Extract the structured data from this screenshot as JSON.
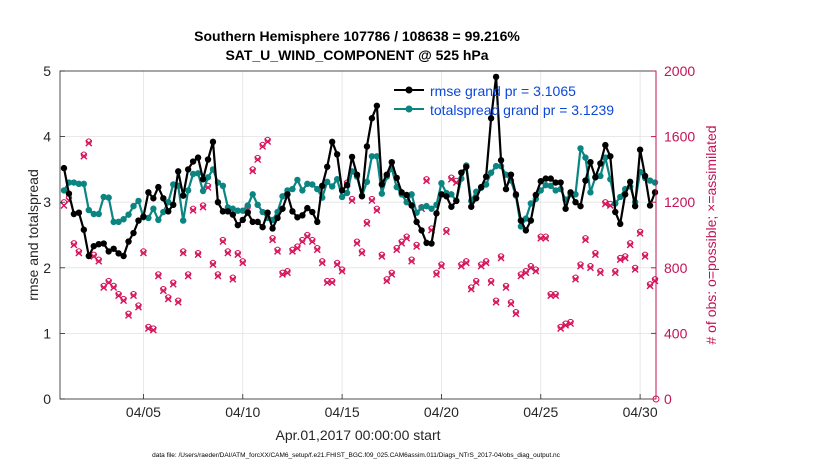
{
  "chart_data": {
    "type": "line",
    "title_line1": "Southern Hemisphere 107786 / 108638 = 99.216%",
    "title_line2": "SAT_U_WIND_COMPONENT @ 525 hPa",
    "xlabel": "Apr.01,2017 00:00:00 start",
    "ylabel_left": "rmse and totalspread",
    "ylabel_right": "# of obs: o=possible; ×=assimilated",
    "footer": "data file: /Users/raeder/DAI/ATM_forcXX/CAM6_setup/f.e21.FHIST_BGC.f09_025.CAM6assim.011/Diags_NTrS_2017-04/obs_diag_output.nc",
    "x_range": [
      0.8,
      30.8
    ],
    "xticks": [
      {
        "x": 5,
        "label": "04/05"
      },
      {
        "x": 10,
        "label": "04/10"
      },
      {
        "x": 15,
        "label": "04/15"
      },
      {
        "x": 20,
        "label": "04/20"
      },
      {
        "x": 25,
        "label": "04/25"
      },
      {
        "x": 30,
        "label": "04/30"
      }
    ],
    "y_left_range": [
      0,
      5
    ],
    "y_left_ticks": [
      "0",
      "1",
      "2",
      "3",
      "4",
      "5"
    ],
    "y_right_range": [
      0,
      2000
    ],
    "y_right_ticks": [
      "0",
      "400",
      "800",
      "1200",
      "1600",
      "2000"
    ],
    "legend": {
      "rmse_label": "rmse grand pr = 3.1065",
      "spread_label": "totalspread grand pr = 3.1239"
    },
    "colors": {
      "rmse": "#000000",
      "spread": "#0a8582",
      "obs": "#d6125a",
      "legend_text": "#0b47d9",
      "right_axis": "#c31356"
    },
    "x": [
      1.0,
      1.25,
      1.5,
      1.75,
      2.0,
      2.25,
      2.5,
      2.75,
      3.0,
      3.25,
      3.5,
      3.75,
      4.0,
      4.25,
      4.5,
      4.75,
      5.0,
      5.25,
      5.5,
      5.75,
      6.0,
      6.25,
      6.5,
      6.75,
      7.0,
      7.25,
      7.5,
      7.75,
      8.0,
      8.25,
      8.5,
      8.75,
      9.0,
      9.25,
      9.5,
      9.75,
      10.0,
      10.25,
      10.5,
      10.75,
      11.0,
      11.25,
      11.5,
      11.75,
      12.0,
      12.25,
      12.5,
      12.75,
      13.0,
      13.25,
      13.5,
      13.75,
      14.0,
      14.25,
      14.5,
      14.75,
      15.0,
      15.25,
      15.5,
      15.75,
      16.0,
      16.25,
      16.5,
      16.75,
      17.0,
      17.25,
      17.5,
      17.75,
      18.0,
      18.25,
      18.5,
      18.75,
      19.0,
      19.25,
      19.5,
      19.75,
      20.0,
      20.25,
      20.5,
      20.75,
      21.0,
      21.25,
      21.5,
      21.75,
      22.0,
      22.25,
      22.5,
      22.75,
      23.0,
      23.25,
      23.5,
      23.75,
      24.0,
      24.25,
      24.5,
      24.75,
      25.0,
      25.25,
      25.5,
      25.75,
      26.0,
      26.25,
      26.5,
      26.75,
      27.0,
      27.25,
      27.5,
      27.75,
      28.0,
      28.25,
      28.5,
      28.75,
      29.0,
      29.25,
      29.5,
      29.75,
      30.0,
      30.25,
      30.5,
      30.75
    ],
    "series": [
      {
        "name": "rmse",
        "values": [
          3.52,
          3.13,
          2.82,
          2.84,
          2.58,
          2.18,
          2.33,
          2.36,
          2.37,
          2.25,
          2.29,
          2.22,
          2.18,
          2.4,
          2.53,
          2.72,
          2.78,
          3.15,
          3.06,
          3.23,
          3.06,
          2.86,
          2.96,
          3.47,
          3.1,
          3.5,
          3.62,
          3.68,
          3.35,
          3.65,
          3.92,
          3.0,
          2.86,
          2.86,
          2.81,
          2.65,
          2.73,
          2.84,
          2.7,
          2.7,
          2.62,
          2.84,
          2.6,
          2.76,
          2.9,
          3.12,
          2.86,
          2.77,
          2.8,
          2.91,
          2.85,
          2.7,
          3.25,
          3.54,
          3.92,
          3.73,
          3.18,
          3.26,
          3.69,
          3.42,
          3.09,
          3.85,
          4.28,
          4.47,
          3.27,
          3.42,
          3.61,
          3.37,
          3.15,
          3.11,
          2.95,
          2.7,
          2.57,
          2.38,
          2.37,
          2.83,
          3.12,
          3.09,
          2.93,
          3.02,
          3.45,
          3.54,
          2.93,
          3.06,
          3.23,
          3.39,
          4.28,
          4.91,
          3.64,
          3.2,
          3.42,
          3.12,
          2.72,
          2.57,
          2.72,
          3.11,
          3.32,
          3.36,
          3.36,
          3.3,
          3.3,
          2.9,
          3.15,
          3.0,
          2.94,
          3.33,
          3.61,
          3.38,
          3.59,
          3.87,
          3.7,
          2.85,
          2.67,
          3.12,
          3.31,
          2.94,
          3.8,
          3.4,
          2.95,
          3.15
        ]
      },
      {
        "name": "totalspread",
        "values": [
          3.18,
          3.3,
          3.3,
          3.28,
          3.28,
          2.88,
          2.82,
          2.82,
          3.08,
          3.07,
          2.7,
          2.7,
          2.74,
          2.81,
          2.94,
          3.02,
          2.77,
          2.76,
          2.9,
          2.73,
          2.85,
          3.0,
          3.27,
          3.25,
          2.72,
          3.18,
          3.43,
          3.44,
          3.17,
          3.38,
          3.5,
          3.3,
          3.25,
          2.92,
          2.9,
          2.87,
          2.87,
          2.95,
          3.12,
          2.96,
          2.85,
          2.76,
          2.73,
          2.85,
          3.09,
          3.18,
          3.2,
          3.34,
          3.18,
          3.28,
          3.27,
          3.2,
          3.07,
          3.31,
          3.24,
          3.35,
          3.08,
          3.14,
          3.47,
          3.39,
          3.1,
          3.31,
          3.7,
          3.7,
          3.13,
          3.39,
          3.51,
          3.23,
          3.12,
          3.0,
          3.12,
          2.84,
          2.92,
          2.94,
          2.9,
          2.96,
          3.29,
          3.14,
          3.12,
          3.02,
          3.36,
          3.56,
          3.02,
          3.16,
          3.22,
          3.27,
          3.45,
          3.55,
          3.55,
          3.42,
          3.33,
          3.1,
          2.63,
          2.75,
          2.98,
          3.05,
          3.18,
          3.26,
          3.25,
          3.18,
          3.2,
          3.04,
          3.12,
          3.12,
          3.82,
          3.68,
          3.15,
          3.38,
          3.4,
          3.68,
          3.35,
          2.98,
          3.08,
          3.2,
          3.24,
          3.0,
          3.46,
          3.37,
          3.33,
          3.3
        ]
      },
      {
        "name": "obs_possible",
        "axis": "right",
        "values": [
          1200,
          1230,
          950,
          900,
          1490,
          1570,
          880,
          850,
          690,
          720,
          690,
          640,
          610,
          520,
          640,
          570,
          900,
          440,
          430,
          760,
          670,
          620,
          710,
          600,
          900,
          760,
          1160,
          890,
          1180,
          1300,
          830,
          760,
          970,
          900,
          740,
          890,
          840,
          1170,
          1400,
          1470,
          1550,
          1580,
          980,
          910,
          770,
          780,
          910,
          930,
          970,
          1000,
          970,
          920,
          840,
          720,
          720,
          830,
          790,
          1320,
          1220,
          960,
          900,
          1080,
          1220,
          1160,
          880,
          730,
          770,
          920,
          960,
          990,
          850,
          940,
          1170,
          1340,
          1040,
          770,
          820,
          1030,
          1350,
          1330,
          820,
          840,
          680,
          720,
          820,
          840,
          720,
          600,
          870,
          690,
          590,
          530,
          760,
          780,
          810,
          790,
          990,
          990,
          640,
          640,
          440,
          460,
          470,
          740,
          820,
          980,
          810,
          890,
          780,
          1200,
          1190,
          780,
          860,
          870,
          950,
          800,
          1020,
          880,
          700,
          730
        ]
      },
      {
        "name": "obs_assimilated",
        "axis": "right",
        "values": [
          1180,
          1210,
          940,
          890,
          1480,
          1560,
          870,
          840,
          680,
          710,
          680,
          630,
          600,
          510,
          630,
          560,
          890,
          430,
          420,
          750,
          660,
          610,
          700,
          590,
          890,
          750,
          1150,
          880,
          1170,
          1290,
          820,
          750,
          960,
          890,
          730,
          880,
          830,
          1160,
          1390,
          1460,
          1540,
          1570,
          970,
          900,
          760,
          770,
          900,
          920,
          960,
          990,
          960,
          910,
          830,
          710,
          710,
          820,
          780,
          1310,
          1210,
          950,
          890,
          1070,
          1210,
          1150,
          870,
          720,
          760,
          910,
          950,
          980,
          840,
          930,
          1160,
          1330,
          1030,
          760,
          810,
          1020,
          1340,
          1320,
          810,
          830,
          670,
          710,
          810,
          830,
          710,
          590,
          860,
          680,
          580,
          520,
          750,
          770,
          800,
          780,
          980,
          980,
          630,
          630,
          430,
          450,
          460,
          730,
          810,
          970,
          800,
          880,
          770,
          1190,
          1180,
          770,
          850,
          860,
          940,
          790,
          1010,
          870,
          690,
          720
        ]
      }
    ]
  }
}
